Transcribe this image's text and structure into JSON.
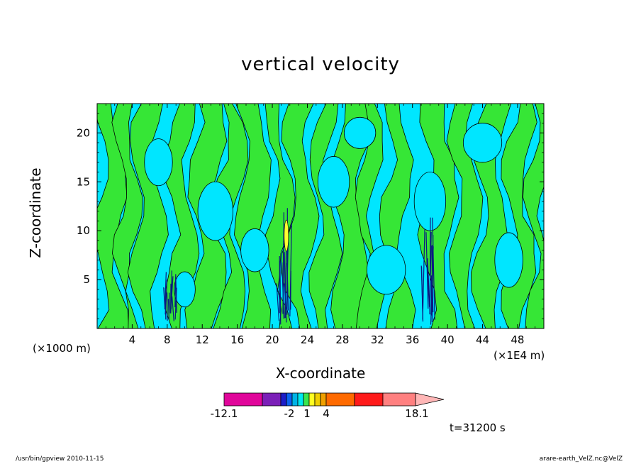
{
  "chart_data": {
    "type": "heatmap",
    "title": "vertical velocity",
    "xlabel": "X-coordinate",
    "ylabel": "Z-coordinate",
    "x_unit_label": "(×1000 m)",
    "x_scale_label": "(×1E4 m)",
    "xlim": [
      0,
      51
    ],
    "ylim": [
      0,
      23
    ],
    "x_ticks": [
      4,
      8,
      12,
      16,
      20,
      24,
      28,
      32,
      36,
      40,
      44,
      48
    ],
    "y_ticks": [
      5,
      10,
      15,
      20
    ],
    "colorbar": {
      "labels": [
        "-12.1",
        "-2",
        "1",
        "4",
        "18.1"
      ],
      "colors": [
        "#e0069a",
        "#7b1fb8",
        "#1d1dc8",
        "#0b64f0",
        "#00b4e6",
        "#00e8f0",
        "#39e64e",
        "#ffff20",
        "#f0d000",
        "#f0a000",
        "#ff6a00",
        "#ff1a1a",
        "#ff8080",
        "#ffb6b6"
      ]
    },
    "field_colors": {
      "positive": "#36e636",
      "negative": "#00e6ff",
      "strong": "#0a1a80",
      "peak": "#ffff30",
      "contour": "#000000"
    },
    "time_label": "t=31200 s"
  },
  "footer": {
    "left": "/usr/bin/gpview   2010-11-15",
    "right": "arare-earth_VelZ.nc@VelZ"
  }
}
